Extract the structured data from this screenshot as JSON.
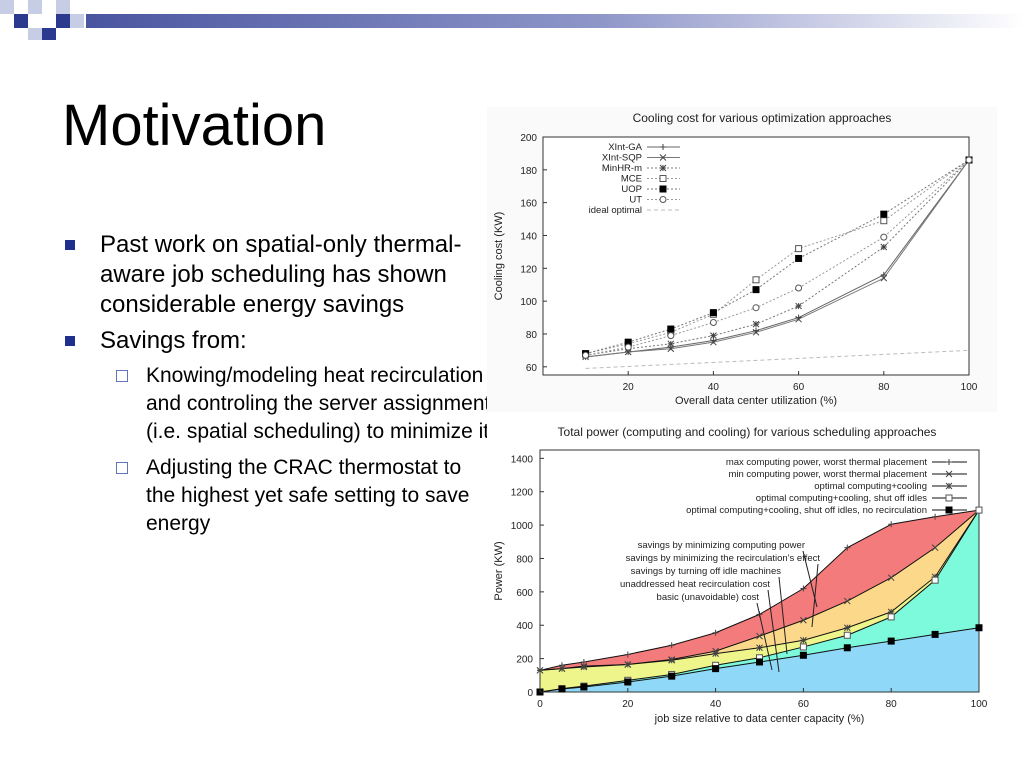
{
  "slide": {
    "title": "Motivation",
    "bullets": [
      {
        "text": "Past work on spatial-only thermal-aware job scheduling has shown considerable energy savings"
      },
      {
        "text": "Savings from:"
      }
    ],
    "sub_bullets": [
      {
        "text": "Knowing/modeling heat recirculation and controling the server assignment (i.e. spatial scheduling) to minimize it"
      },
      {
        "text": "Adjusting the CRAC thermostat to the highest yet safe setting to save energy"
      }
    ],
    "colors": {
      "bullet": "#1f2f8f",
      "deco_dark": "#2b3a8f",
      "deco_light": "#c8cde6"
    }
  },
  "chart_data": [
    {
      "type": "line",
      "title": "Cooling cost for various optimization approaches",
      "xlabel": "Overall data center utilization (%)",
      "ylabel": "Cooling cost (KW)",
      "xlim": [
        0,
        100
      ],
      "ylim": [
        55,
        200
      ],
      "xticks": [
        20,
        40,
        60,
        80,
        100
      ],
      "yticks": [
        60,
        80,
        100,
        120,
        140,
        160,
        180,
        200
      ],
      "legend_position": "top-left",
      "grid": false,
      "series": [
        {
          "name": "XInt-GA",
          "x": [
            10,
            20,
            30,
            40,
            50,
            60,
            80,
            100
          ],
          "y": [
            66,
            69,
            72,
            76,
            82,
            90,
            116,
            186
          ]
        },
        {
          "name": "XInt-SQP",
          "x": [
            10,
            20,
            30,
            40,
            50,
            60,
            80,
            100
          ],
          "y": [
            66,
            69,
            71,
            75,
            81,
            89,
            114,
            186
          ]
        },
        {
          "name": "MinHR-m",
          "x": [
            10,
            20,
            30,
            40,
            50,
            60,
            80,
            100
          ],
          "y": [
            67,
            71,
            74,
            79,
            86,
            97,
            133,
            186
          ]
        },
        {
          "name": "MCE",
          "x": [
            10,
            20,
            30,
            40,
            50,
            60,
            80,
            100
          ],
          "y": [
            68,
            74,
            81,
            92,
            113,
            132,
            149,
            186
          ]
        },
        {
          "name": "UOP",
          "x": [
            10,
            20,
            30,
            40,
            50,
            60,
            80,
            100
          ],
          "y": [
            68,
            75,
            83,
            93,
            107,
            126,
            153,
            186
          ]
        },
        {
          "name": "UT",
          "x": [
            10,
            20,
            30,
            40,
            50,
            60,
            80,
            100
          ],
          "y": [
            67,
            72,
            79,
            87,
            96,
            108,
            139,
            186
          ]
        },
        {
          "name": "ideal optimal",
          "x": [
            10,
            100
          ],
          "y": [
            59,
            70
          ]
        }
      ]
    },
    {
      "type": "area",
      "title": "Total power (computing and cooling) for various scheduling approaches",
      "xlabel": "job size relative to data center capacity (%)",
      "ylabel": "Power (KW)",
      "xlim": [
        0,
        100
      ],
      "ylim": [
        0,
        1450
      ],
      "xticks": [
        0,
        20,
        40,
        60,
        80,
        100
      ],
      "yticks": [
        0,
        200,
        400,
        600,
        800,
        1000,
        1200,
        1400
      ],
      "legend_position": "top-right",
      "grid": false,
      "x": [
        0,
        5,
        10,
        20,
        30,
        40,
        50,
        60,
        70,
        80,
        90,
        100
      ],
      "series": [
        {
          "name": "max computing power, worst thermal placement",
          "values": [
            130,
            160,
            180,
            225,
            280,
            355,
            465,
            620,
            865,
            1005,
            1050,
            1090
          ]
        },
        {
          "name": "min computing power, worst thermal placement",
          "values": [
            130,
            140,
            155,
            165,
            195,
            245,
            335,
            430,
            545,
            685,
            865,
            1090
          ]
        },
        {
          "name": "optimal computing+cooling",
          "values": [
            130,
            140,
            150,
            165,
            190,
            230,
            265,
            310,
            385,
            480,
            690,
            1090
          ]
        },
        {
          "name": "optimal computing+cooling, shut off idles",
          "values": [
            0,
            20,
            35,
            70,
            105,
            160,
            205,
            270,
            340,
            450,
            670,
            1090
          ]
        },
        {
          "name": "optimal computing+cooling, shut off idles, no recirculation",
          "values": [
            0,
            18,
            30,
            60,
            95,
            140,
            180,
            220,
            265,
            305,
            345,
            385
          ]
        }
      ],
      "annotations": [
        "savings by minimizing computing power",
        "savings by minimizing the recirculation's effect",
        "savings by turning off idle machines",
        "unaddressed heat recirculation cost",
        "basic (unavoidable) cost"
      ],
      "fill_colors": [
        "#f37b7b",
        "#fbd88a",
        "#eef58a",
        "#7dfadc",
        "#8fd8f8"
      ]
    }
  ]
}
